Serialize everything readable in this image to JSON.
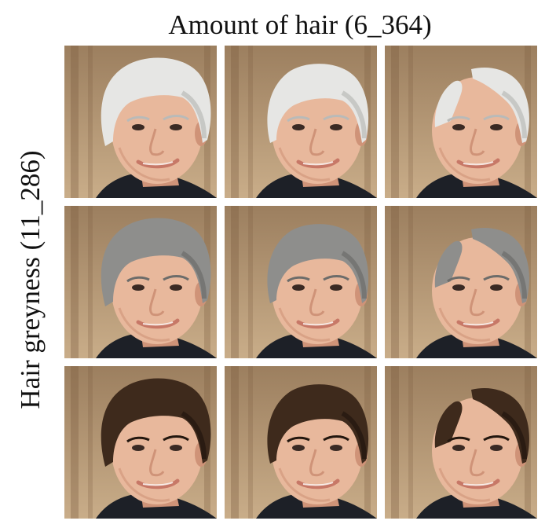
{
  "column_title": "Amount of hair (6_364)",
  "row_title": "Hair greyness (11_286)",
  "colors": {
    "background_top": "#9c7f5f",
    "background_bottom": "#c9ad89",
    "curtain_shadow": "#7a5c40",
    "skin": "#e8b89c",
    "skin_shadow": "#cf9378",
    "lips": "#c77867",
    "shirt": "#1d2027"
  },
  "grid": {
    "rows": [
      {
        "hair_color": "#e6e6e4",
        "hair_shadow": "#b9bab8",
        "cells": [
          {
            "icon": "portrait-man-white-full-hair",
            "hair_amount": "full"
          },
          {
            "icon": "portrait-man-white-medium-hair",
            "hair_amount": "medium"
          },
          {
            "icon": "portrait-man-white-receding-hair",
            "hair_amount": "receding"
          }
        ]
      },
      {
        "hair_color": "#8e8e8c",
        "hair_shadow": "#6c6c6a",
        "cells": [
          {
            "icon": "portrait-man-grey-full-hair",
            "hair_amount": "full"
          },
          {
            "icon": "portrait-man-grey-medium-hair",
            "hair_amount": "medium"
          },
          {
            "icon": "portrait-man-grey-receding-hair",
            "hair_amount": "receding"
          }
        ]
      },
      {
        "hair_color": "#3e2a1c",
        "hair_shadow": "#22160e",
        "cells": [
          {
            "icon": "portrait-man-dark-full-hair",
            "hair_amount": "full"
          },
          {
            "icon": "portrait-man-dark-medium-hair",
            "hair_amount": "medium"
          },
          {
            "icon": "portrait-man-dark-receding-hair",
            "hair_amount": "receding"
          }
        ]
      }
    ]
  }
}
